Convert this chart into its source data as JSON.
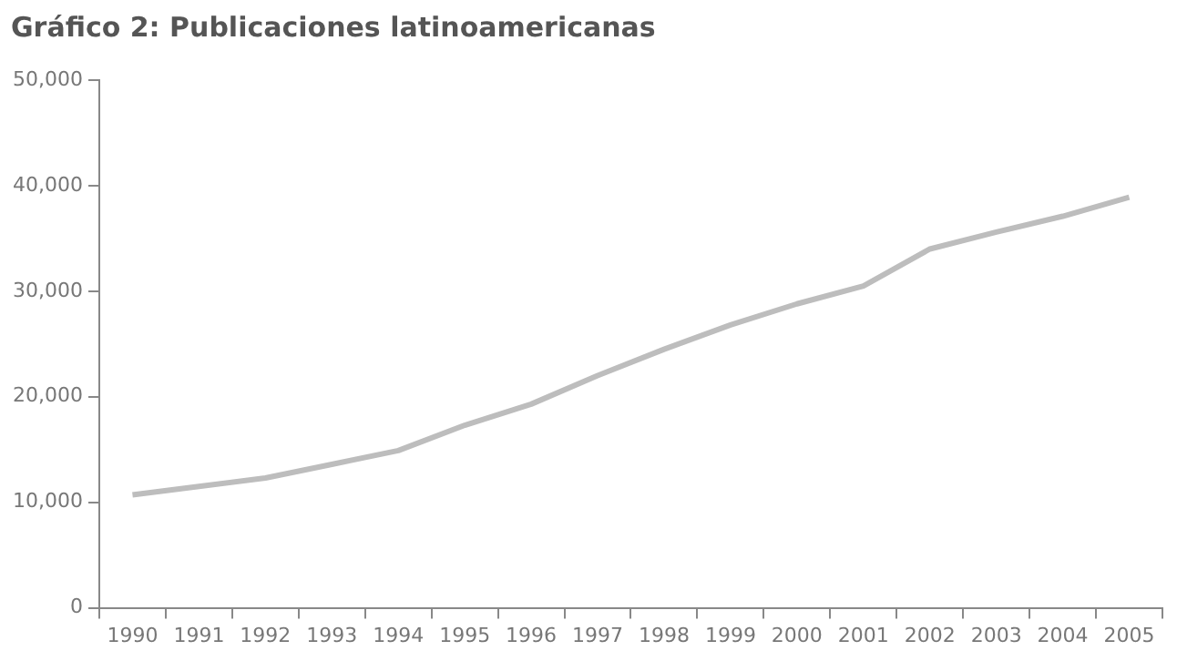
{
  "chart_data": {
    "type": "line",
    "title": "Gráfico 2: Publicaciones latinoamericanas",
    "categories": [
      "1990",
      "1991",
      "1992",
      "1993",
      "1994",
      "1995",
      "1996",
      "1997",
      "1998",
      "1999",
      "2000",
      "2001",
      "2002",
      "2003",
      "2004",
      "2005"
    ],
    "series": [
      {
        "color": "#bdbdbd",
        "values": [
          10700,
          11500,
          12300,
          13600,
          14900,
          17300,
          19300,
          22000,
          24500,
          26800,
          28800,
          30500,
          34000,
          35600,
          37100,
          38900
        ]
      }
    ],
    "ylim": [
      0,
      50000
    ],
    "yticks": [
      {
        "value": 0,
        "label": "0"
      },
      {
        "value": 10000,
        "label": "10,000"
      },
      {
        "value": 20000,
        "label": "20,000"
      },
      {
        "value": 30000,
        "label": "30,000"
      },
      {
        "value": 40000,
        "label": "40,000"
      },
      {
        "value": 50000,
        "label": "50,000"
      }
    ],
    "grid": false,
    "legend": false,
    "marker": "none",
    "line_style": "solid"
  }
}
